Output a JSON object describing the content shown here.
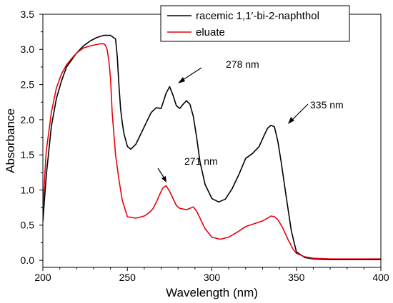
{
  "chart_data": {
    "type": "line",
    "title": "",
    "xlabel": "Wavelength (nm)",
    "ylabel": "Absorbance",
    "xlim": [
      200,
      400
    ],
    "ylim": [
      -0.1,
      3.5
    ],
    "x_ticks": [
      "200",
      "250",
      "300",
      "350",
      "400"
    ],
    "y_ticks": [
      "0.0",
      "0.5",
      "1.0",
      "1.5",
      "2.0",
      "2.5",
      "3.0",
      "3.5"
    ],
    "grid": false,
    "legend_position": "top-right",
    "series": [
      {
        "name": "racemic 1,1′-bi-2-naphthol",
        "color": "#000000",
        "x": [
          200,
          202,
          205,
          208,
          211,
          214,
          217,
          220,
          224,
          228,
          232,
          236,
          240,
          243,
          244,
          245,
          246,
          247,
          248,
          250,
          252,
          255,
          258,
          261,
          264,
          267,
          270,
          273,
          275,
          277,
          279,
          281,
          283,
          285,
          287,
          289,
          291,
          293,
          296,
          300,
          304,
          308,
          312,
          316,
          320,
          324,
          328,
          331,
          333,
          335,
          337,
          339,
          341,
          344,
          347,
          350,
          355,
          360,
          370,
          380,
          390,
          400
        ],
        "y": [
          0.55,
          1.2,
          1.9,
          2.3,
          2.55,
          2.75,
          2.85,
          2.95,
          3.05,
          3.12,
          3.17,
          3.2,
          3.2,
          3.15,
          2.9,
          2.5,
          2.15,
          1.95,
          1.8,
          1.62,
          1.58,
          1.65,
          1.8,
          1.95,
          2.1,
          2.17,
          2.16,
          2.38,
          2.47,
          2.35,
          2.2,
          2.16,
          2.22,
          2.27,
          2.22,
          2.05,
          1.75,
          1.4,
          1.08,
          0.88,
          0.83,
          0.87,
          1.02,
          1.22,
          1.45,
          1.52,
          1.62,
          1.78,
          1.88,
          1.92,
          1.9,
          1.7,
          1.4,
          0.9,
          0.42,
          0.12,
          0.04,
          0.02,
          0.01,
          0.01,
          0.01,
          0.01
        ]
      },
      {
        "name": "eluate",
        "color": "#e8000b",
        "x": [
          200,
          202,
          205,
          208,
          211,
          214,
          217,
          220,
          224,
          228,
          232,
          234,
          236,
          237,
          238,
          239,
          240,
          241,
          243,
          245,
          247,
          250,
          255,
          260,
          263,
          265,
          267,
          269,
          271,
          273,
          275,
          277,
          279,
          281,
          283,
          285,
          287,
          289,
          291,
          293,
          296,
          300,
          305,
          310,
          315,
          320,
          325,
          330,
          333,
          335,
          337,
          339,
          342,
          345,
          348,
          350,
          355,
          360,
          370,
          380,
          390,
          400
        ],
        "y": [
          0.75,
          1.55,
          2.1,
          2.45,
          2.65,
          2.78,
          2.87,
          2.95,
          3.02,
          3.05,
          3.07,
          3.08,
          3.08,
          3.06,
          3.0,
          2.85,
          2.6,
          2.1,
          1.5,
          1.15,
          0.85,
          0.62,
          0.6,
          0.63,
          0.68,
          0.73,
          0.82,
          0.93,
          1.03,
          1.06,
          0.98,
          0.88,
          0.78,
          0.74,
          0.73,
          0.72,
          0.74,
          0.76,
          0.7,
          0.6,
          0.45,
          0.33,
          0.3,
          0.33,
          0.4,
          0.48,
          0.52,
          0.56,
          0.6,
          0.63,
          0.62,
          0.58,
          0.46,
          0.3,
          0.16,
          0.1,
          0.05,
          0.03,
          0.02,
          0.02,
          0.02,
          0.02
        ]
      }
    ],
    "annotations": [
      {
        "text": "278 nm",
        "target_x": 277,
        "target_y": 2.47
      },
      {
        "text": "335 nm",
        "target_x": 336,
        "target_y": 1.92
      },
      {
        "text": "271 nm",
        "target_x": 272,
        "target_y": 1.06
      }
    ]
  }
}
